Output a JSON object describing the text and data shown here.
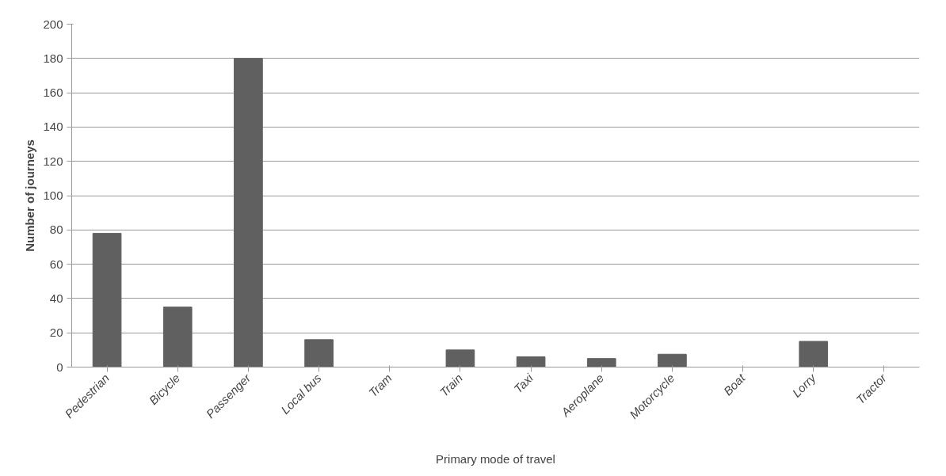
{
  "chart_data": {
    "type": "bar",
    "xlabel": "Primary mode of travel",
    "ylabel": "Number of journeys",
    "categories": [
      "Pedestrian",
      "Bicycle",
      "Passenger",
      "Local bus",
      "Tram",
      "Train",
      "Taxi",
      "Aeroplane",
      "Motorcycle",
      "Boat",
      "Lorry",
      "Tractor"
    ],
    "values": [
      78,
      35,
      180,
      16,
      0,
      10,
      6,
      5,
      7.5,
      0,
      15,
      0
    ],
    "color": "#606060",
    "ylim": [
      0,
      200
    ],
    "yticks": [
      0,
      20,
      40,
      60,
      80,
      100,
      120,
      140,
      160,
      180,
      200
    ],
    "grid": "y"
  }
}
